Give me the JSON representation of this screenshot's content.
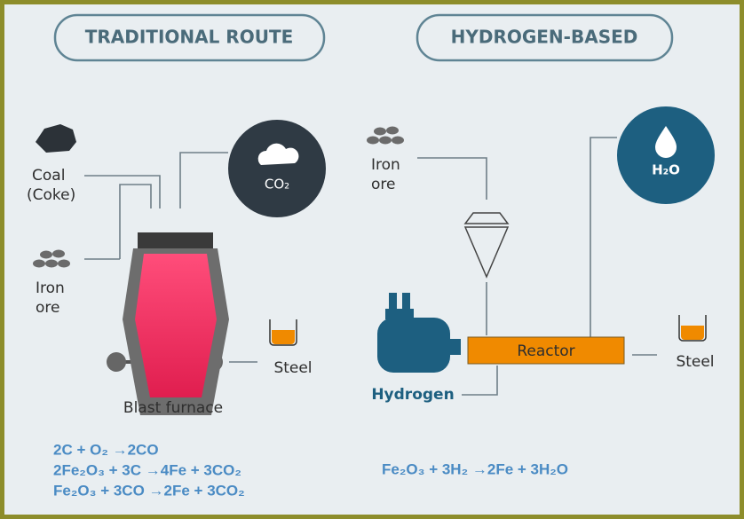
{
  "traditional": {
    "heading": "TRADITIONAL ROUTE",
    "coal": [
      "Coal",
      "(Coke)"
    ],
    "iron_ore": [
      "Iron",
      "ore"
    ],
    "emission": "CO₂",
    "furnace": "Blast furnace",
    "product": "Steel",
    "equations": [
      "2C + O₂ →2CO",
      "2Fe₂O₃ + 3C →4Fe + 3CO₂",
      "Fe₂O₃ + 3CO →2Fe + 3CO₂"
    ]
  },
  "hydrogen_based": {
    "heading": "HYDROGEN-BASED",
    "iron_ore": [
      "Iron",
      "ore"
    ],
    "emission": "H₂O",
    "reactor": "Reactor",
    "hydrogen": "Hydrogen",
    "product": "Steel",
    "equations": [
      "Fe₂O₃ + 3H₂ →2Fe + 3H₂O"
    ]
  }
}
